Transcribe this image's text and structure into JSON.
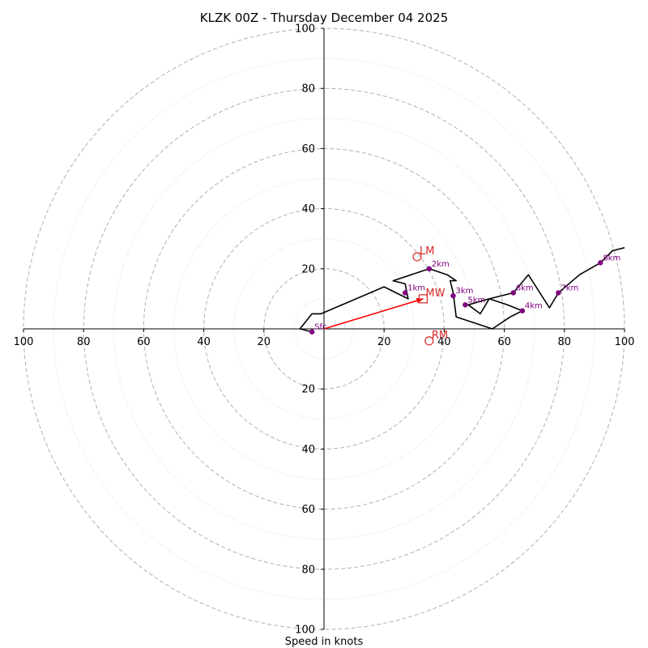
{
  "chart_data": {
    "type": "hodograph",
    "title": "KLZK 00Z - Thursday December 04 2025",
    "xlabel": "Speed in knots",
    "xlim": [
      -100,
      100
    ],
    "ylim": [
      -100,
      100
    ],
    "x_ticks": [
      {
        "value": -100,
        "label": "100"
      },
      {
        "value": -80,
        "label": "80"
      },
      {
        "value": -60,
        "label": "60"
      },
      {
        "value": -40,
        "label": "40"
      },
      {
        "value": -20,
        "label": "20"
      },
      {
        "value": 20,
        "label": "20"
      },
      {
        "value": 40,
        "label": "40"
      },
      {
        "value": 60,
        "label": "60"
      },
      {
        "value": 80,
        "label": "80"
      },
      {
        "value": 100,
        "label": "100"
      }
    ],
    "y_ticks": [
      {
        "value": 100,
        "label": "100"
      },
      {
        "value": 80,
        "label": "80"
      },
      {
        "value": 60,
        "label": "60"
      },
      {
        "value": 40,
        "label": "40"
      },
      {
        "value": 20,
        "label": "20"
      },
      {
        "value": -20,
        "label": "20"
      },
      {
        "value": -40,
        "label": "40"
      },
      {
        "value": -60,
        "label": "60"
      },
      {
        "value": -80,
        "label": "80"
      },
      {
        "value": -100,
        "label": "100"
      }
    ],
    "rings_major": [
      20,
      40,
      60,
      80,
      100
    ],
    "rings_minor": [
      10,
      30,
      50,
      70,
      90
    ],
    "wind_trace": [
      [
        -8,
        0
      ],
      [
        -4,
        -1
      ],
      [
        -8,
        0
      ],
      [
        -4,
        5
      ],
      [
        -1,
        5
      ],
      [
        20,
        14
      ],
      [
        28,
        10
      ],
      [
        27,
        15
      ],
      [
        23,
        16
      ],
      [
        35,
        20
      ],
      [
        41,
        18
      ],
      [
        44,
        16
      ],
      [
        42,
        16
      ],
      [
        43,
        12
      ],
      [
        44,
        4
      ],
      [
        56,
        0
      ],
      [
        62,
        4
      ],
      [
        66,
        6
      ],
      [
        61,
        8
      ],
      [
        55,
        10
      ],
      [
        52,
        5
      ],
      [
        48,
        8
      ],
      [
        55,
        10
      ],
      [
        63,
        12
      ],
      [
        68,
        18
      ],
      [
        75,
        7
      ],
      [
        78,
        12
      ],
      [
        85,
        18
      ],
      [
        92,
        22
      ],
      [
        96,
        26
      ],
      [
        100,
        27
      ]
    ],
    "height_markers": [
      {
        "label": "Sfc",
        "u": -4,
        "v": -1
      },
      {
        "label": "1km",
        "u": 27,
        "v": 12
      },
      {
        "label": "2km",
        "u": 35,
        "v": 20
      },
      {
        "label": "3km",
        "u": 43,
        "v": 11
      },
      {
        "label": "4km",
        "u": 66,
        "v": 6
      },
      {
        "label": "5km",
        "u": 47,
        "v": 8
      },
      {
        "label": "6km",
        "u": 63,
        "v": 12
      },
      {
        "label": "7km",
        "u": 78,
        "v": 12
      },
      {
        "label": "8km",
        "u": 92,
        "v": 22
      }
    ],
    "storm_motion": [
      {
        "label": "LM",
        "u": 31,
        "v": 24,
        "marker": "circle"
      },
      {
        "label": "MW",
        "u": 33,
        "v": 10,
        "marker": "square"
      },
      {
        "label": "RM",
        "u": 35,
        "v": -4,
        "marker": "circle"
      }
    ],
    "shear_vector": {
      "from": [
        0,
        0
      ],
      "to": [
        33,
        10
      ]
    },
    "colors": {
      "trace": "#000000",
      "markers": "#800080",
      "storm": "#d62728",
      "shear": "#ff0000",
      "ring": "#b0b0b0",
      "ring_minor": "#cccccc",
      "axis": "#000000"
    }
  }
}
